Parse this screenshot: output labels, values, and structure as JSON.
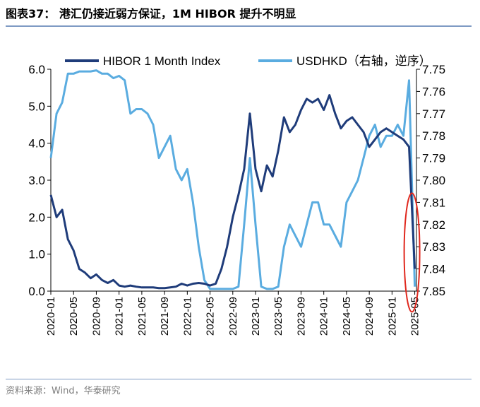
{
  "title": "图表37： 港汇仍接近弱方保证，1M HIBOR 提升不明显",
  "source": "资料来源：Wind，华泰研究",
  "chart_data": {
    "type": "line",
    "series": [
      {
        "name": "HIBOR 1 Month Index",
        "axis": "left",
        "color": "#1f3c7a",
        "points": [
          [
            "2020-01",
            2.6
          ],
          [
            "2020-02",
            2.0
          ],
          [
            "2020-03",
            2.2
          ],
          [
            "2020-04",
            1.4
          ],
          [
            "2020-05",
            1.1
          ],
          [
            "2020-06",
            0.6
          ],
          [
            "2020-07",
            0.5
          ],
          [
            "2020-08",
            0.35
          ],
          [
            "2020-09",
            0.45
          ],
          [
            "2020-10",
            0.3
          ],
          [
            "2020-11",
            0.22
          ],
          [
            "2020-12",
            0.3
          ],
          [
            "2021-01",
            0.15
          ],
          [
            "2021-02",
            0.12
          ],
          [
            "2021-03",
            0.15
          ],
          [
            "2021-04",
            0.12
          ],
          [
            "2021-05",
            0.1
          ],
          [
            "2021-06",
            0.1
          ],
          [
            "2021-07",
            0.1
          ],
          [
            "2021-08",
            0.08
          ],
          [
            "2021-09",
            0.08
          ],
          [
            "2021-10",
            0.1
          ],
          [
            "2021-11",
            0.12
          ],
          [
            "2021-12",
            0.2
          ],
          [
            "2022-01",
            0.15
          ],
          [
            "2022-02",
            0.2
          ],
          [
            "2022-03",
            0.22
          ],
          [
            "2022-04",
            0.2
          ],
          [
            "2022-05",
            0.15
          ],
          [
            "2022-06",
            0.2
          ],
          [
            "2022-07",
            0.6
          ],
          [
            "2022-08",
            1.2
          ],
          [
            "2022-09",
            2.0
          ],
          [
            "2022-10",
            2.6
          ],
          [
            "2022-11",
            3.3
          ],
          [
            "2022-12",
            4.8
          ],
          [
            "2023-01",
            3.3
          ],
          [
            "2023-02",
            2.7
          ],
          [
            "2023-03",
            3.4
          ],
          [
            "2023-04",
            3.1
          ],
          [
            "2023-05",
            3.8
          ],
          [
            "2023-06",
            4.7
          ],
          [
            "2023-07",
            4.3
          ],
          [
            "2023-08",
            4.5
          ],
          [
            "2023-09",
            4.9
          ],
          [
            "2023-10",
            5.2
          ],
          [
            "2023-11",
            5.1
          ],
          [
            "2023-12",
            5.2
          ],
          [
            "2024-01",
            4.9
          ],
          [
            "2024-02",
            5.3
          ],
          [
            "2024-03",
            4.8
          ],
          [
            "2024-04",
            4.4
          ],
          [
            "2024-05",
            4.6
          ],
          [
            "2024-06",
            4.7
          ],
          [
            "2024-07",
            4.5
          ],
          [
            "2024-08",
            4.3
          ],
          [
            "2024-09",
            3.9
          ],
          [
            "2024-10",
            4.1
          ],
          [
            "2024-11",
            4.3
          ],
          [
            "2024-12",
            4.4
          ],
          [
            "2025-01",
            4.3
          ],
          [
            "2025-02",
            4.2
          ],
          [
            "2025-03",
            4.1
          ],
          [
            "2025-04",
            3.9
          ],
          [
            "2025-05",
            0.6
          ]
        ]
      },
      {
        "name": "USDHKD（右轴，逆序）",
        "axis": "right",
        "color": "#5aace0",
        "points": [
          [
            "2020-01",
            7.79
          ],
          [
            "2020-02",
            7.77
          ],
          [
            "2020-03",
            7.765
          ],
          [
            "2020-04",
            7.752
          ],
          [
            "2020-05",
            7.752
          ],
          [
            "2020-06",
            7.751
          ],
          [
            "2020-07",
            7.751
          ],
          [
            "2020-08",
            7.751
          ],
          [
            "2020-09",
            7.7505
          ],
          [
            "2020-10",
            7.752
          ],
          [
            "2020-11",
            7.752
          ],
          [
            "2020-12",
            7.754
          ],
          [
            "2021-01",
            7.753
          ],
          [
            "2021-02",
            7.755
          ],
          [
            "2021-03",
            7.77
          ],
          [
            "2021-04",
            7.768
          ],
          [
            "2021-05",
            7.768
          ],
          [
            "2021-06",
            7.77
          ],
          [
            "2021-07",
            7.775
          ],
          [
            "2021-08",
            7.79
          ],
          [
            "2021-09",
            7.785
          ],
          [
            "2021-10",
            7.78
          ],
          [
            "2021-11",
            7.795
          ],
          [
            "2021-12",
            7.8
          ],
          [
            "2022-01",
            7.795
          ],
          [
            "2022-02",
            7.81
          ],
          [
            "2022-03",
            7.83
          ],
          [
            "2022-04",
            7.845
          ],
          [
            "2022-05",
            7.849
          ],
          [
            "2022-06",
            7.849
          ],
          [
            "2022-07",
            7.849
          ],
          [
            "2022-08",
            7.849
          ],
          [
            "2022-09",
            7.849
          ],
          [
            "2022-10",
            7.848
          ],
          [
            "2022-11",
            7.82
          ],
          [
            "2022-12",
            7.79
          ],
          [
            "2023-01",
            7.82
          ],
          [
            "2023-02",
            7.848
          ],
          [
            "2023-03",
            7.849
          ],
          [
            "2023-04",
            7.849
          ],
          [
            "2023-05",
            7.848
          ],
          [
            "2023-06",
            7.83
          ],
          [
            "2023-07",
            7.82
          ],
          [
            "2023-08",
            7.825
          ],
          [
            "2023-09",
            7.83
          ],
          [
            "2023-10",
            7.82
          ],
          [
            "2023-11",
            7.81
          ],
          [
            "2023-12",
            7.81
          ],
          [
            "2024-01",
            7.82
          ],
          [
            "2024-02",
            7.82
          ],
          [
            "2024-03",
            7.825
          ],
          [
            "2024-04",
            7.83
          ],
          [
            "2024-05",
            7.81
          ],
          [
            "2024-06",
            7.805
          ],
          [
            "2024-07",
            7.8
          ],
          [
            "2024-08",
            7.79
          ],
          [
            "2024-09",
            7.78
          ],
          [
            "2024-10",
            7.775
          ],
          [
            "2024-11",
            7.785
          ],
          [
            "2024-12",
            7.78
          ],
          [
            "2025-01",
            7.78
          ],
          [
            "2025-02",
            7.775
          ],
          [
            "2025-03",
            7.78
          ],
          [
            "2025-04",
            7.755
          ],
          [
            "2025-05",
            7.848
          ]
        ]
      }
    ],
    "x_ticks": [
      "2020-01",
      "2020-05",
      "2020-09",
      "2021-01",
      "2021-05",
      "2021-09",
      "2022-01",
      "2022-05",
      "2022-09",
      "2023-01",
      "2023-05",
      "2023-09",
      "2024-01",
      "2024-05",
      "2024-09",
      "2025-01",
      "2025-05"
    ],
    "left_axis": {
      "ylim": [
        0.0,
        6.0
      ],
      "ticks": [
        "0.0",
        "1.0",
        "2.0",
        "3.0",
        "4.0",
        "5.0",
        "6.0"
      ]
    },
    "right_axis": {
      "ylim": [
        7.85,
        7.75
      ],
      "inverted": true,
      "ticks": [
        "7.75",
        "7.76",
        "7.77",
        "7.78",
        "7.79",
        "7.80",
        "7.81",
        "7.82",
        "7.83",
        "7.84",
        "7.85"
      ]
    },
    "legend_placement": "top",
    "annotation": "red ellipse highlighting 2025-05",
    "annotation_color": "#e0281e",
    "grid": false
  }
}
